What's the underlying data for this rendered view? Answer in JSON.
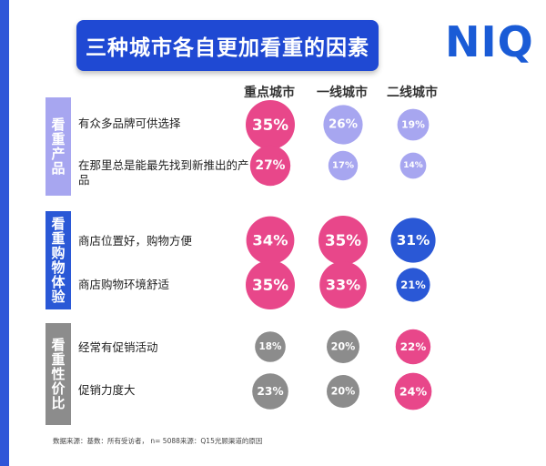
{
  "title": "三种城市各自更加看重的因素",
  "logo": "NIQ",
  "footnote": "数据来源：基数：所有受访者， n= 5088来源：Q15光顾渠道的原因",
  "colors": {
    "title_bg": "#1f49d3",
    "pink": "#e8478a",
    "lavender": "#a7a6f0",
    "blue": "#2a58d6",
    "gray": "#8c8c8c",
    "group1": "#a7a6f0",
    "group2": "#2a58d6",
    "group3": "#8c8c8c"
  },
  "chart_data": {
    "type": "table",
    "columns": [
      "重点城市",
      "一线城市",
      "二线城市"
    ],
    "groups": [
      {
        "label": "看重产品",
        "rows": [
          {
            "label": "有众多品牌可供选择",
            "values": [
              35,
              26,
              19
            ],
            "colors": [
              "pink",
              "lavender",
              "lavender"
            ]
          },
          {
            "label": "在那里总是能最先找到新推出的产品",
            "values": [
              27,
              17,
              14
            ],
            "colors": [
              "pink",
              "lavender",
              "lavender"
            ]
          }
        ]
      },
      {
        "label": "看重购物体验",
        "rows": [
          {
            "label": "商店位置好，购物方便",
            "values": [
              34,
              35,
              31
            ],
            "colors": [
              "pink",
              "pink",
              "blue"
            ]
          },
          {
            "label": "商店购物环境舒适",
            "values": [
              35,
              33,
              21
            ],
            "colors": [
              "pink",
              "pink",
              "blue"
            ]
          }
        ]
      },
      {
        "label": "看重性价比",
        "rows": [
          {
            "label": "经常有促销活动",
            "values": [
              18,
              20,
              22
            ],
            "colors": [
              "gray",
              "gray",
              "pink"
            ]
          },
          {
            "label": "促销力度大",
            "values": [
              23,
              20,
              24
            ],
            "colors": [
              "gray",
              "gray",
              "pink"
            ]
          }
        ]
      }
    ]
  }
}
